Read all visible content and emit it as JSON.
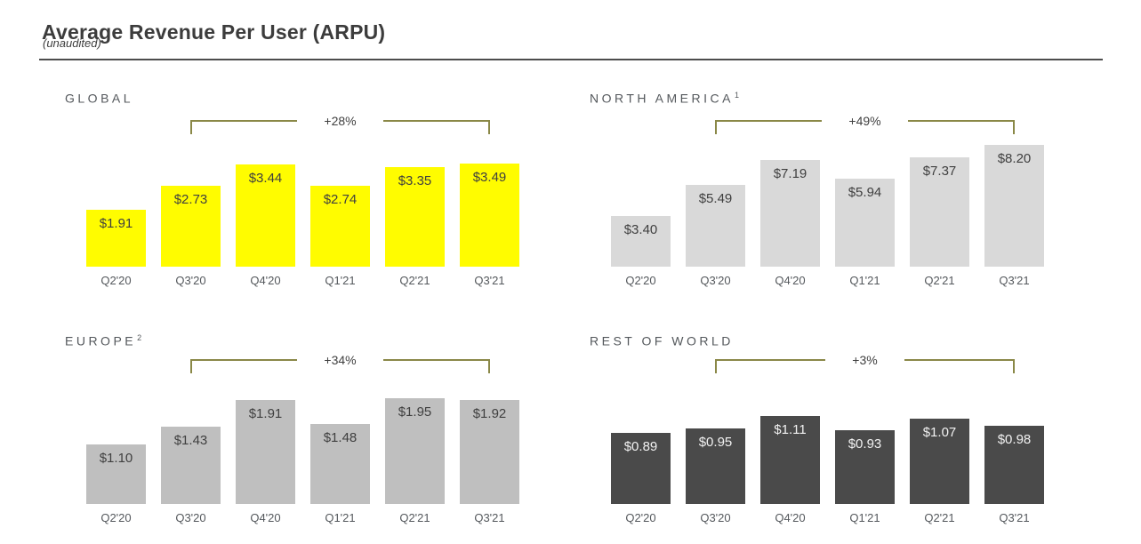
{
  "page": {
    "title": "Average Revenue Per User (ARPU)",
    "subtitle": "(unaudited)"
  },
  "colors": {
    "snap_yellow": "#FFFC00",
    "light_gray": "#D9D9D9",
    "medium_gray": "#BFBFBF",
    "charcoal": "#4A4A4A",
    "bracket_olive": "#8A8847",
    "text_dark": "#3F3F3F",
    "text_light": "#F2F2F2",
    "heading_gray": "#54585C"
  },
  "chart_data": [
    {
      "type": "bar",
      "title": "GLOBAL",
      "footnote": "",
      "growth_label": "+28%",
      "bracket_spans": [
        "Q3'20",
        "Q3'21"
      ],
      "categories": [
        "Q2'20",
        "Q3'20",
        "Q4'20",
        "Q1'21",
        "Q2'21",
        "Q3'21"
      ],
      "values": [
        1.91,
        2.73,
        3.44,
        2.74,
        3.35,
        3.49
      ],
      "display_values": [
        "$1.91",
        "$2.73",
        "$3.44",
        "$2.74",
        "$3.35",
        "$3.49"
      ],
      "ylim": [
        0,
        3.6
      ],
      "bar_color": "#FFFC00",
      "value_label_color": "#3F3F3F",
      "grid": false,
      "axes_hidden": true,
      "value_labels_position": "inside-top"
    },
    {
      "type": "bar",
      "title": "NORTH AMERICA",
      "footnote": "1",
      "growth_label": "+49%",
      "bracket_spans": [
        "Q3'20",
        "Q3'21"
      ],
      "categories": [
        "Q2'20",
        "Q3'20",
        "Q4'20",
        "Q1'21",
        "Q2'21",
        "Q3'21"
      ],
      "values": [
        3.4,
        5.49,
        7.19,
        5.94,
        7.37,
        8.2
      ],
      "display_values": [
        "$3.40",
        "$5.49",
        "$7.19",
        "$5.94",
        "$7.37",
        "$8.20"
      ],
      "ylim": [
        0,
        8.5
      ],
      "bar_color": "#D9D9D9",
      "value_label_color": "#3F3F3F",
      "grid": false,
      "axes_hidden": true,
      "value_labels_position": "inside-top"
    },
    {
      "type": "bar",
      "title": "EUROPE",
      "footnote": "2",
      "growth_label": "+34%",
      "bracket_spans": [
        "Q3'20",
        "Q3'21"
      ],
      "categories": [
        "Q2'20",
        "Q3'20",
        "Q4'20",
        "Q1'21",
        "Q2'21",
        "Q3'21"
      ],
      "values": [
        1.1,
        1.43,
        1.91,
        1.48,
        1.95,
        1.92
      ],
      "display_values": [
        "$1.10",
        "$1.43",
        "$1.91",
        "$1.48",
        "$1.95",
        "$1.92"
      ],
      "ylim": [
        0,
        2.0
      ],
      "bar_color": "#BFBFBF",
      "value_label_color": "#3F3F3F",
      "grid": false,
      "axes_hidden": true,
      "value_labels_position": "inside-top"
    },
    {
      "type": "bar",
      "title": "REST OF WORLD",
      "footnote": "",
      "growth_label": "+3%",
      "bracket_spans": [
        "Q3'20",
        "Q3'21"
      ],
      "categories": [
        "Q2'20",
        "Q3'20",
        "Q4'20",
        "Q1'21",
        "Q2'21",
        "Q3'21"
      ],
      "values": [
        0.89,
        0.95,
        1.11,
        0.93,
        1.07,
        0.98
      ],
      "display_values": [
        "$0.89",
        "$0.95",
        "$1.11",
        "$0.93",
        "$1.07",
        "$0.98"
      ],
      "ylim": [
        0,
        1.25
      ],
      "bar_color": "#4A4A4A",
      "value_label_color": "#F2F2F2",
      "grid": false,
      "axes_hidden": true,
      "value_labels_position": "inside-top"
    }
  ]
}
